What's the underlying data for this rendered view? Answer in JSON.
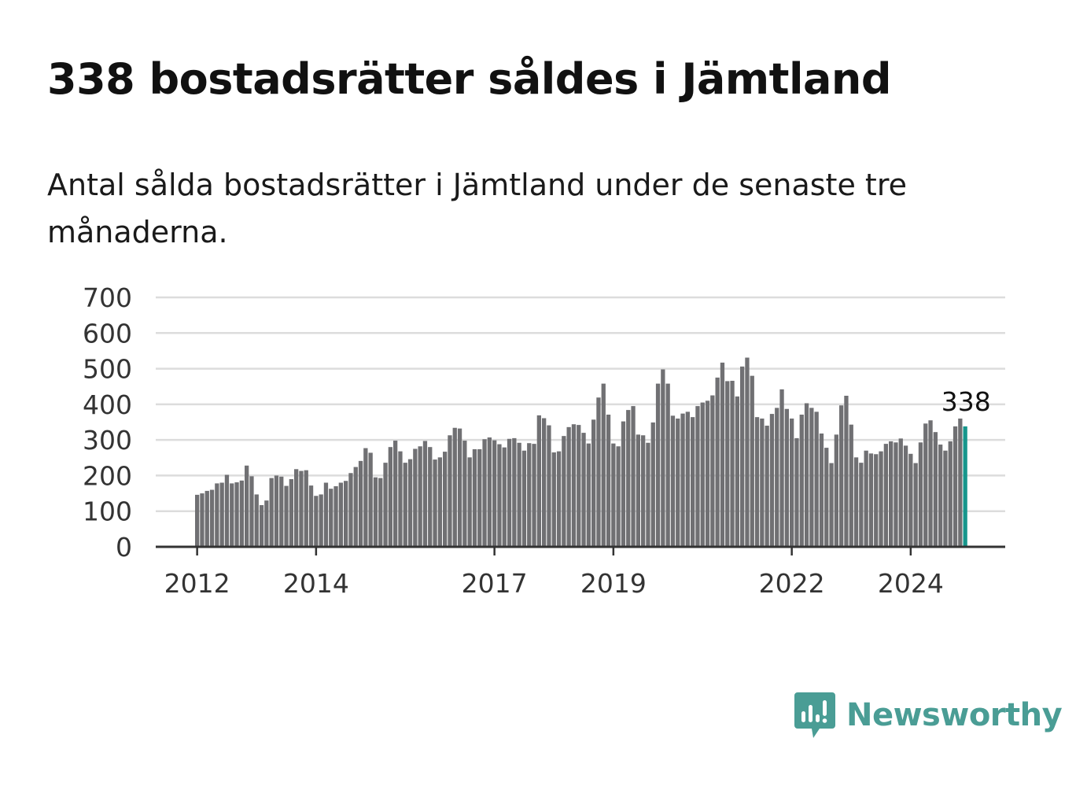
{
  "title": "338 bostadsrätter såldes i Jämtland",
  "subtitle": "Antal sålda bostadsrätter i Jämtland under de senaste tre månaderna.",
  "brand": {
    "name": "Newsworthy",
    "icon": "newsworthy-logo-icon",
    "color": "#4a9d95"
  },
  "colors": {
    "bar": "#707073",
    "highlight": "#17968c",
    "grid": "#dcdcdc",
    "axis": "#333333"
  },
  "chart_data": {
    "type": "bar",
    "title": "338 bostadsrätter såldes i Jämtland",
    "subtitle": "Antal sålda bostadsrätter i Jämtland under de senaste tre månaderna.",
    "xlabel": "",
    "ylabel": "",
    "ylim": [
      0,
      700
    ],
    "y_ticks": [
      "0",
      "100",
      "200",
      "300",
      "400",
      "500",
      "600",
      "700"
    ],
    "x_ticks": [
      "2012",
      "2014",
      "2017",
      "2019",
      "2022",
      "2024"
    ],
    "grid": true,
    "highlight_label": "338",
    "categories_start": "2012-01",
    "frequency": "monthly",
    "values": [
      146,
      150,
      157,
      160,
      178,
      180,
      202,
      178,
      181,
      186,
      228,
      198,
      147,
      117,
      130,
      193,
      200,
      197,
      171,
      190,
      218,
      213,
      215,
      172,
      143,
      147,
      180,
      163,
      170,
      180,
      185,
      207,
      224,
      241,
      277,
      264,
      195,
      193,
      236,
      280,
      298,
      268,
      236,
      246,
      275,
      282,
      297,
      280,
      245,
      251,
      267,
      313,
      334,
      332,
      298,
      251,
      274,
      274,
      302,
      307,
      299,
      288,
      279,
      303,
      305,
      292,
      270,
      291,
      289,
      369,
      361,
      341,
      265,
      268,
      311,
      336,
      344,
      342,
      320,
      290,
      357,
      419,
      458,
      371,
      290,
      282,
      352,
      384,
      395,
      315,
      313,
      292,
      349,
      458,
      498,
      458,
      368,
      360,
      374,
      379,
      364,
      395,
      405,
      410,
      425,
      475,
      517,
      465,
      466,
      422,
      506,
      531,
      480,
      364,
      360,
      340,
      373,
      390,
      442,
      387,
      360,
      305,
      371,
      403,
      390,
      379,
      318,
      278,
      235,
      315,
      397,
      424,
      343,
      251,
      236,
      270,
      262,
      260,
      268,
      289,
      296,
      293,
      304,
      284,
      261,
      235,
      293,
      346,
      355,
      322,
      287,
      270,
      296,
      338,
      360,
      338
    ]
  }
}
